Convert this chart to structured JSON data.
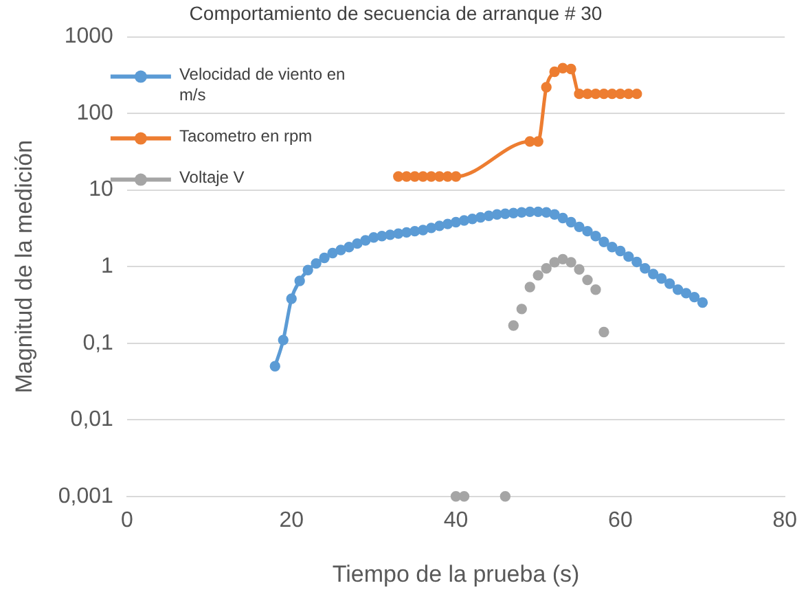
{
  "chart_data": {
    "type": "line",
    "title": "Comportamiento de secuencia de arranque # 30",
    "xlabel": "Tiempo de la prueba (s)",
    "ylabel": "Magnitud de la medición",
    "log": "y",
    "grid": "y",
    "legend": "top left",
    "marker": "circle",
    "xlim": [
      0,
      80
    ],
    "xticks": [
      0,
      20,
      40,
      60,
      80
    ],
    "ylim": [
      0.001,
      1000
    ],
    "yticks": [
      {
        "value": 0.001,
        "label": "0,001"
      },
      {
        "value": 0.01,
        "label": "0,01"
      },
      {
        "value": 0.1,
        "label": "0,1"
      },
      1,
      10,
      100,
      1000
    ],
    "series": [
      {
        "name": "Velocidad de viento en m/s",
        "color": "#5b9bd5",
        "x": [
          18,
          19,
          20,
          21,
          22,
          23,
          24,
          25,
          26,
          27,
          28,
          29,
          30,
          31,
          32,
          33,
          34,
          35,
          36,
          37,
          38,
          39,
          40,
          41,
          42,
          43,
          44,
          45,
          46,
          47,
          48,
          49,
          50,
          51,
          52,
          53,
          54,
          55,
          56,
          57,
          58,
          59,
          60,
          61,
          62,
          63,
          64,
          65,
          66,
          67,
          68,
          69,
          70
        ],
        "values": [
          0.05,
          0.11,
          0.38,
          0.65,
          0.9,
          1.1,
          1.3,
          1.5,
          1.65,
          1.8,
          2.0,
          2.2,
          2.4,
          2.5,
          2.6,
          2.7,
          2.8,
          2.9,
          3.0,
          3.2,
          3.4,
          3.6,
          3.8,
          4.0,
          4.2,
          4.4,
          4.6,
          4.8,
          4.9,
          5.0,
          5.1,
          5.2,
          5.2,
          5.1,
          4.8,
          4.3,
          3.8,
          3.3,
          2.9,
          2.5,
          2.1,
          1.8,
          1.6,
          1.35,
          1.15,
          0.95,
          0.8,
          0.7,
          0.6,
          0.5,
          0.45,
          0.4,
          0.34
        ]
      },
      {
        "name": "Tacometro en rpm",
        "color": "#ed7d31",
        "x": [
          33,
          34,
          35,
          36,
          37,
          38,
          39,
          40,
          49,
          50,
          51,
          52,
          53,
          54,
          55,
          56,
          57,
          58,
          59,
          60,
          61,
          62
        ],
        "values": [
          15,
          15,
          15,
          15,
          15,
          15,
          15,
          15,
          43,
          43,
          220,
          350,
          390,
          380,
          180,
          180,
          180,
          180,
          180,
          180,
          180,
          180
        ]
      },
      {
        "name": "Voltaje V",
        "type": "scatter",
        "color": "#a5a5a5",
        "x": [
          40,
          41,
          46,
          47,
          48,
          49,
          50,
          51,
          52,
          53,
          54,
          55,
          56,
          57,
          58
        ],
        "values": [
          0.001,
          0.001,
          0.001,
          0.17,
          0.28,
          0.54,
          0.77,
          0.95,
          1.14,
          1.25,
          1.14,
          0.92,
          0.67,
          0.5,
          0.14
        ]
      }
    ]
  }
}
